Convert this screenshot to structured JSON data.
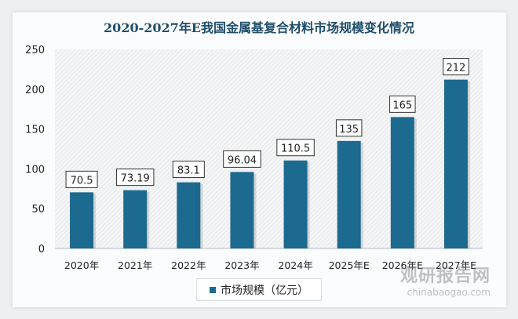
{
  "chart_data": {
    "type": "bar",
    "title": "2020-2027年E我国金属基复合材料市场规模变化情况",
    "categories": [
      "2020年",
      "2021年",
      "2022年",
      "2023年",
      "2024年",
      "2025年E",
      "2026年E",
      "2027年E"
    ],
    "series": [
      {
        "name": "市场规模（亿元）",
        "values": [
          70.5,
          73.19,
          83.1,
          96.04,
          110.5,
          135,
          165,
          212
        ]
      }
    ],
    "data_labels": [
      "70.5",
      "73.19",
      "83.1",
      "96.04",
      "110.5",
      "135",
      "165",
      "212"
    ],
    "ylim": [
      0,
      250
    ],
    "yticks": [
      0,
      50,
      100,
      150,
      200,
      250
    ],
    "xlabel": "",
    "ylabel": "",
    "grid": false,
    "legend": "bottom",
    "colors": {
      "bar": "#1c6a8f",
      "title": "#1f4e6b"
    }
  },
  "watermark": {
    "name": "观研报告网",
    "url": "chinabaogao.com"
  }
}
